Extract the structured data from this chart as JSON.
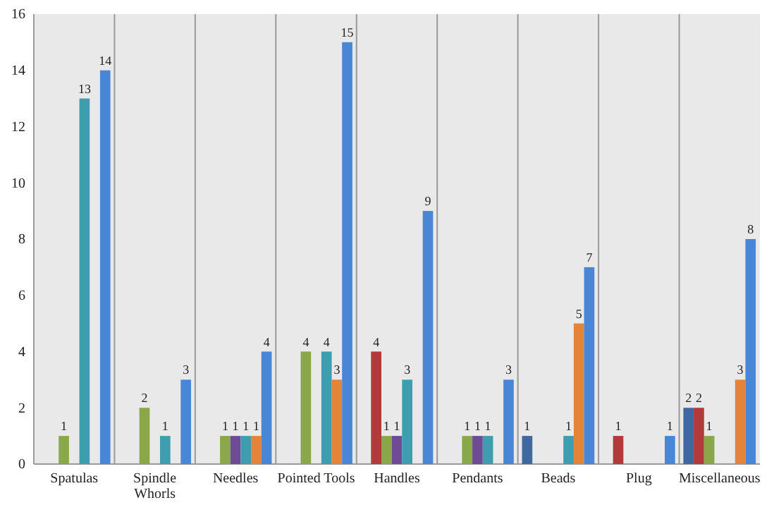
{
  "chart_data": {
    "type": "bar",
    "categories": [
      "Spatulas",
      "Spindle Whorls",
      "Needles",
      "Pointed Tools",
      "Handles",
      "Pendants",
      "Beads",
      "Plug",
      "Miscellaneous"
    ],
    "series": [
      {
        "color": "#3f67a0",
        "values": [
          null,
          null,
          null,
          null,
          null,
          null,
          1,
          null,
          2
        ]
      },
      {
        "color": "#b13b3a",
        "values": [
          null,
          null,
          null,
          null,
          4,
          null,
          null,
          1,
          2
        ]
      },
      {
        "color": "#8aa84a",
        "values": [
          1,
          2,
          1,
          4,
          1,
          1,
          null,
          null,
          1
        ]
      },
      {
        "color": "#6e4b94",
        "values": [
          null,
          null,
          1,
          null,
          1,
          1,
          null,
          null,
          null
        ]
      },
      {
        "color": "#3f9db0",
        "values": [
          13,
          1,
          1,
          4,
          3,
          1,
          1,
          null,
          null
        ]
      },
      {
        "color": "#e3843a",
        "values": [
          null,
          null,
          1,
          3,
          null,
          null,
          5,
          null,
          3
        ]
      },
      {
        "color": "#4a86d6",
        "values": [
          14,
          3,
          4,
          15,
          9,
          3,
          7,
          1,
          8
        ]
      }
    ],
    "ylim": [
      0,
      16
    ],
    "yticks": [
      0,
      2,
      4,
      6,
      8,
      10,
      12,
      14,
      16
    ],
    "grid": "x",
    "data_labels": true
  }
}
